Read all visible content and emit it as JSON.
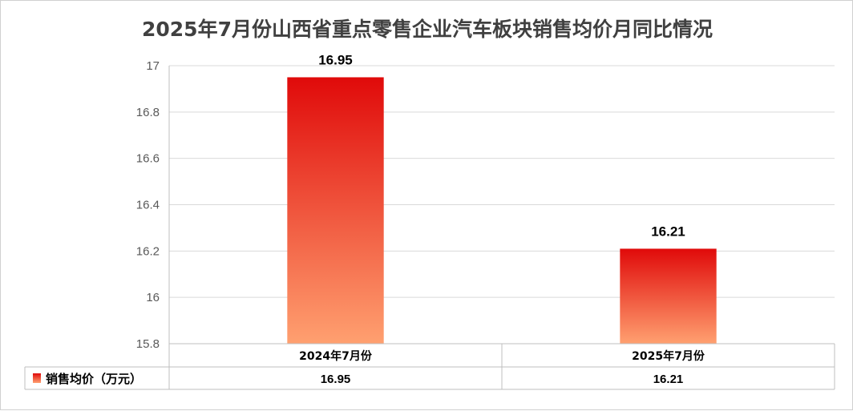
{
  "chart_data": {
    "type": "bar",
    "title": "2025年7月份山西省重点零售企业汽车板块销售均价月同比情况",
    "categories": [
      "2024年7月份",
      "2025年7月份"
    ],
    "series": [
      {
        "name": "销售均价（万元）",
        "values": [
          16.95,
          16.21
        ]
      }
    ],
    "data_labels": [
      "16.95",
      "16.21"
    ],
    "table_values": [
      "16.95",
      "16.21"
    ],
    "y_ticks": [
      "17",
      "16.8",
      "16.6",
      "16.4",
      "16.2",
      "16",
      "15.8"
    ],
    "ylim": [
      15.8,
      17
    ],
    "grid": true,
    "data_table": true,
    "legend": "data-table-left",
    "colors": {
      "bar_top": "#e00a0a",
      "bar_bottom": "#ffa070",
      "grid": "#d9d9d9",
      "axis": "#bfbfbf",
      "title": "#404040"
    }
  }
}
